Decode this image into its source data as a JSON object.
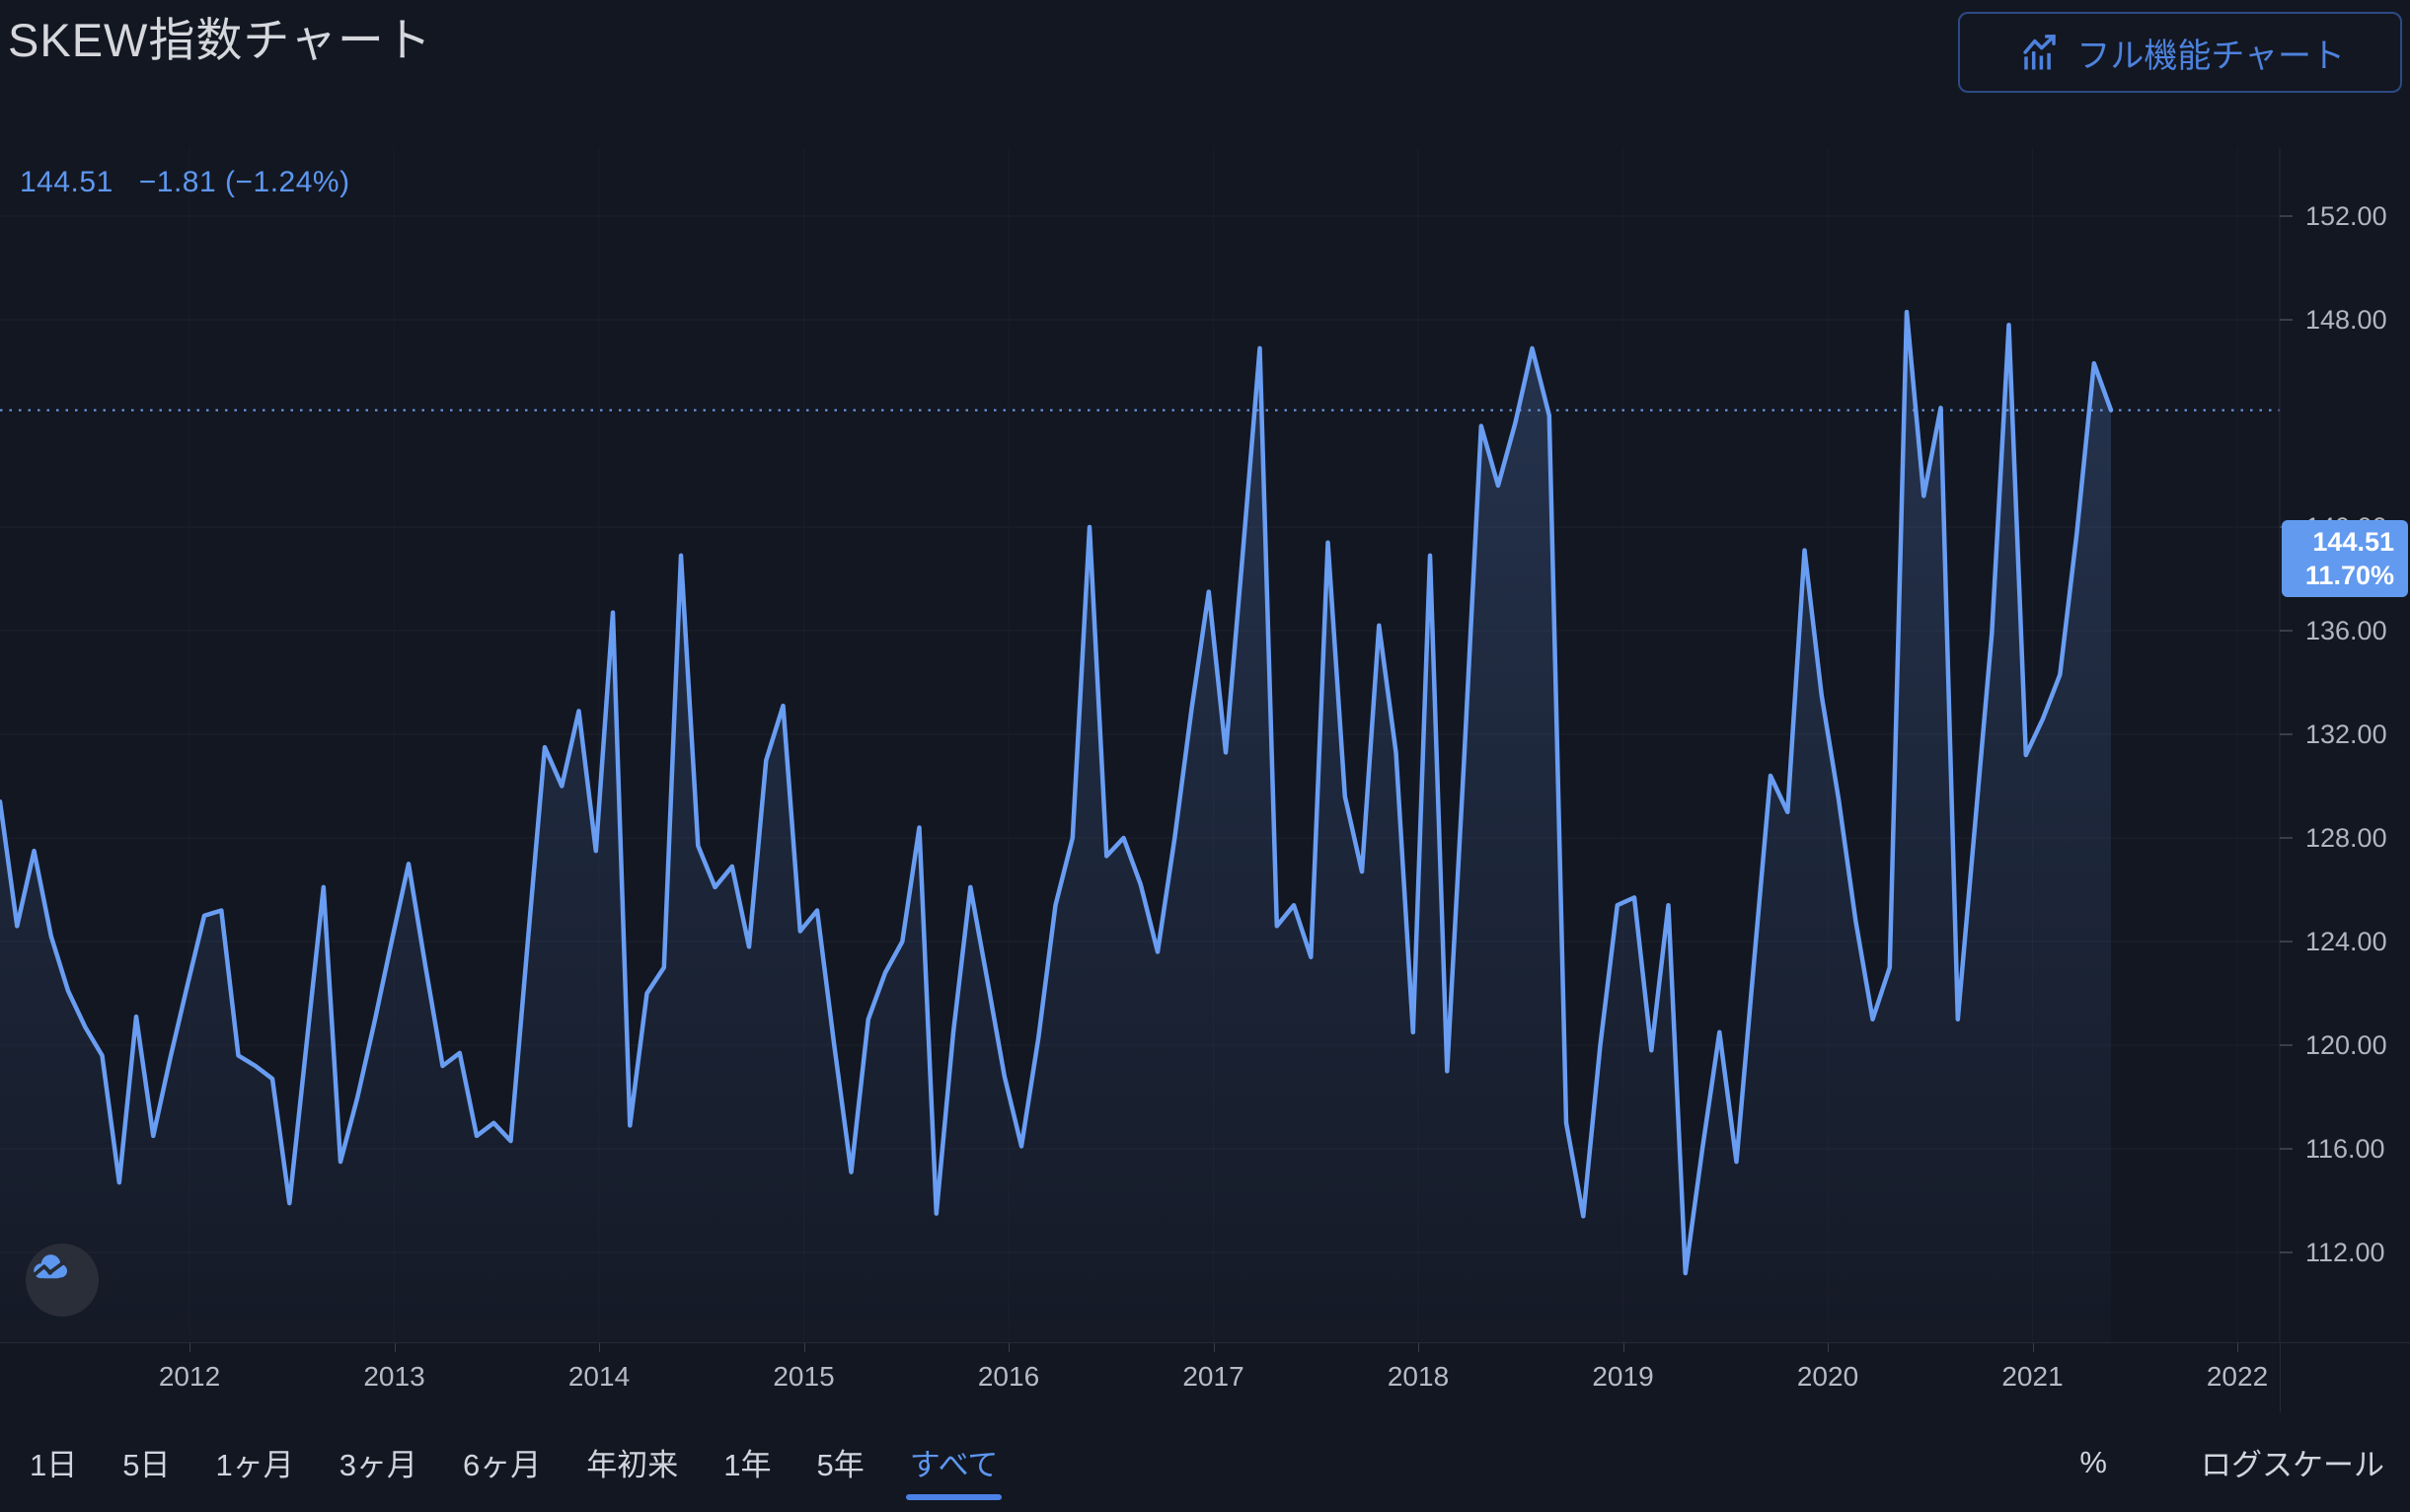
{
  "header": {
    "title": "SKEW指数チャート",
    "full_chart_button": "フル機能チャート"
  },
  "legend": {
    "value": "144.51",
    "change": "−1.81 (−1.24%)"
  },
  "price_label": {
    "price": "144.51",
    "percent": "11.70%"
  },
  "toolbar": {
    "ranges": [
      {
        "label": "1日",
        "active": false
      },
      {
        "label": "5日",
        "active": false
      },
      {
        "label": "1ヶ月",
        "active": false
      },
      {
        "label": "3ヶ月",
        "active": false
      },
      {
        "label": "6ヶ月",
        "active": false
      },
      {
        "label": "年初来",
        "active": false
      },
      {
        "label": "1年",
        "active": false
      },
      {
        "label": "5年",
        "active": false
      },
      {
        "label": "すべて",
        "active": true
      }
    ],
    "percent_toggle": "%",
    "log_scale": "ログスケール"
  },
  "colors": {
    "background": "#131722",
    "line": "#699df2",
    "accent_blue": "#5d97f0",
    "price_flag_bg": "#629af0",
    "axis_text": "#b2b5be",
    "separator": "#242a36",
    "button_blue": "#4d82dd"
  },
  "chart_data": {
    "type": "line",
    "title": "SKEW指数チャート",
    "legend_position": "top-left",
    "grid": true,
    "last_price": 144.51,
    "change_abs": -1.81,
    "change_pct": -1.24,
    "period_change_pct": 11.7,
    "x_axis": {
      "tick_labels": [
        "2012",
        "2013",
        "2014",
        "2015",
        "2016",
        "2017",
        "2018",
        "2019",
        "2020",
        "2021",
        "2022"
      ],
      "start": "2011-02",
      "interval": "monthly"
    },
    "y_axis": {
      "min": 112,
      "max": 152,
      "tick_step": 4,
      "tick_values": [
        152,
        148,
        140,
        136,
        132,
        128,
        124,
        120,
        116,
        112
      ],
      "tick_labels": [
        "152.00",
        "148.00",
        "140.00",
        "136.00",
        "132.00",
        "128.00",
        "124.00",
        "120.00",
        "116.00",
        "112.00"
      ]
    },
    "series": [
      {
        "name": "SKEW",
        "values": [
          129.4,
          124.6,
          127.5,
          124.2,
          122.1,
          120.7,
          119.6,
          114.7,
          121.1,
          116.5,
          119.5,
          122.3,
          125.0,
          125.2,
          119.6,
          119.2,
          118.7,
          113.9,
          120.0,
          126.1,
          115.5,
          118.0,
          120.9,
          124.0,
          127.0,
          123.0,
          119.2,
          119.7,
          116.5,
          117.0,
          116.3,
          124.0,
          131.5,
          130.0,
          132.9,
          127.5,
          136.7,
          116.9,
          122.0,
          123.0,
          138.9,
          127.7,
          126.1,
          126.9,
          123.8,
          131.0,
          133.1,
          124.4,
          125.2,
          120.0,
          115.1,
          121.0,
          122.8,
          124.0,
          128.4,
          113.5,
          120.5,
          126.1,
          122.5,
          118.8,
          116.1,
          120.3,
          125.4,
          128.0,
          140.0,
          127.3,
          128.0,
          126.2,
          123.6,
          128.0,
          133.0,
          137.5,
          131.3,
          139.0,
          146.9,
          124.6,
          125.4,
          123.4,
          139.4,
          129.6,
          126.7,
          136.2,
          131.3,
          120.5,
          138.9,
          119.0,
          131.0,
          143.9,
          141.6,
          144.0,
          146.9,
          144.3,
          117.0,
          113.4,
          120.0,
          125.4,
          125.7,
          119.8,
          125.4,
          111.2,
          116.0,
          120.5,
          115.5,
          123.0,
          130.4,
          129.0,
          139.1,
          133.5,
          129.5,
          124.8,
          121.0,
          123.0,
          148.3,
          141.2,
          144.6,
          121.0,
          128.4,
          135.9,
          147.8,
          131.2,
          132.6,
          134.3,
          139.8,
          146.32,
          144.51
        ]
      }
    ]
  },
  "watermark": "tradingview-cloud-logo"
}
